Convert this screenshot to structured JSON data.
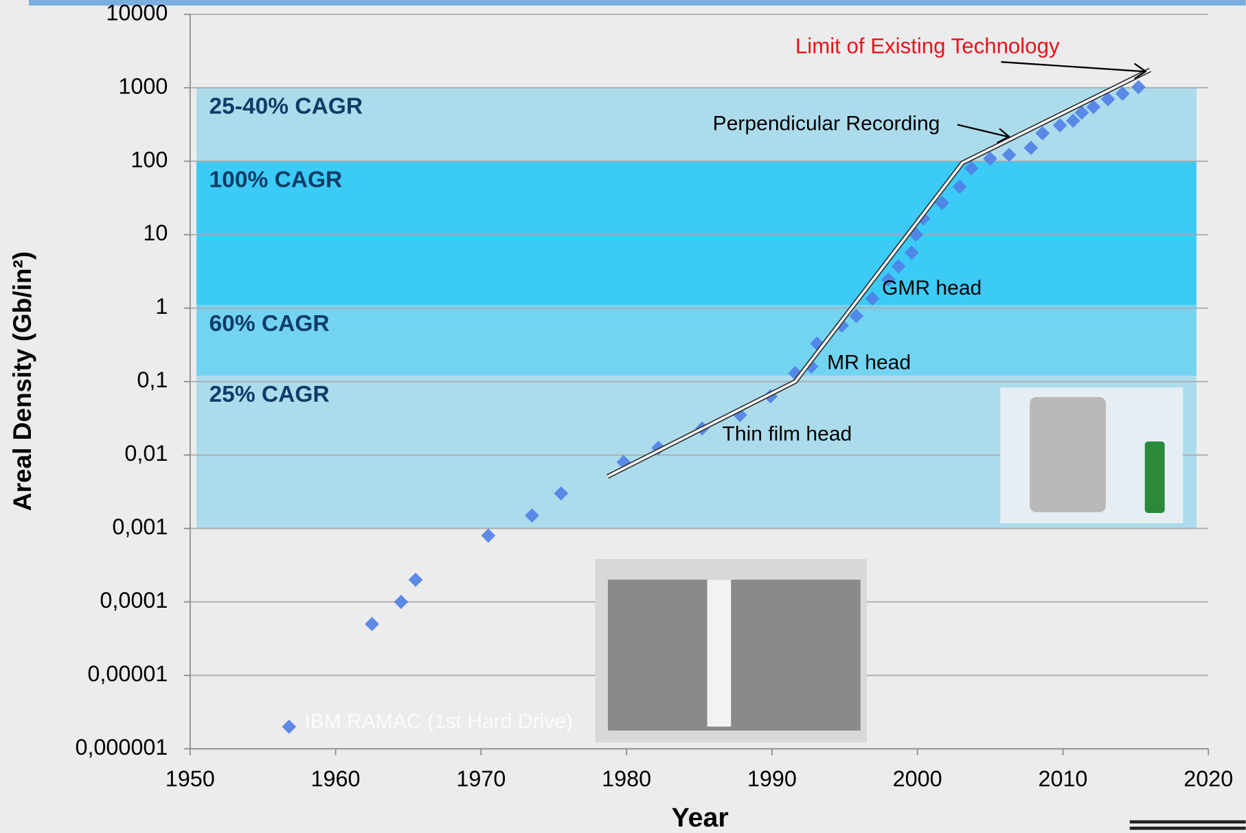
{
  "chart_data": {
    "type": "scatter",
    "x_label": "Year",
    "y_label": "Areal Density (Gb/in²)",
    "xlim": [
      1950,
      2020
    ],
    "xticks": [
      1950,
      1960,
      1970,
      1980,
      1990,
      2000,
      2010,
      2020
    ],
    "ylim": [
      1e-06,
      10000
    ],
    "log_y": true,
    "grid": true,
    "yticks": [
      {
        "value": 1e-06,
        "label": "0,000001"
      },
      {
        "value": 1e-05,
        "label": "0,00001"
      },
      {
        "value": 0.0001,
        "label": "0,0001"
      },
      {
        "value": 0.001,
        "label": "0,001"
      },
      {
        "value": 0.01,
        "label": "0,01"
      },
      {
        "value": 0.1,
        "label": "0,1"
      },
      1,
      10,
      100,
      1000,
      10000
    ],
    "series": [
      {
        "color": "#4f7fe6",
        "x": [
          1956.8,
          1962.5,
          1964.5,
          1965.5,
          1970.5,
          1973.5,
          1975.5,
          1979.8,
          1982.2,
          1985.2,
          1987.8,
          1989.9,
          1991.6,
          1992.7,
          1993.1,
          1994.8,
          1995.8,
          1996.9,
          1998.0,
          1998.7,
          1999.6,
          1999.9,
          2000.4,
          2001.7,
          2002.9,
          2003.7,
          2005.0,
          2006.3,
          2007.8,
          2008.6,
          2009.8,
          2010.7,
          2011.3,
          2012.1,
          2013.1,
          2014.1,
          2015.2
        ],
        "values": [
          2e-06,
          5e-05,
          0.0001,
          0.0002,
          0.0008,
          0.0015,
          0.003,
          0.008,
          0.0125,
          0.023,
          0.035,
          0.063,
          0.13,
          0.16,
          0.33,
          0.58,
          0.78,
          1.35,
          2.45,
          3.7,
          5.7,
          10,
          16.6,
          27,
          45,
          80,
          108,
          122,
          152,
          240,
          308,
          355,
          457,
          547,
          697,
          830,
          1020
        ]
      }
    ],
    "trend_line": {
      "color": "#ffffff",
      "x": [
        1978.7,
        1991.6,
        2003.1,
        2016
      ],
      "values": [
        0.0051,
        0.1,
        95,
        1750
      ]
    },
    "bands": [
      {
        "label": "25-40% CAGR",
        "ylim": [
          100,
          1000
        ],
        "color": "#acdcec"
      },
      {
        "label": "100% CAGR",
        "ylim": [
          1.1,
          100
        ],
        "color": "#3ccbf6"
      },
      {
        "label": "60% CAGR",
        "ylim": [
          0.12,
          1.1
        ],
        "color": "#73d4f2"
      },
      {
        "label": "25% CAGR",
        "ylim": [
          0.001,
          0.12
        ],
        "color": "#acdcec"
      }
    ],
    "annotations": [
      {
        "text": "Limit of Existing Technology",
        "color": "#e8121a"
      },
      {
        "text": "Perpendicular Recording",
        "color": "#000000"
      },
      {
        "text": "GMR head",
        "color": "#000000"
      },
      {
        "text": "MR head",
        "color": "#000000"
      },
      {
        "text": "Thin film head",
        "color": "#000000"
      },
      {
        "text": "IBM RAMAC (1st Hard Drive)",
        "color": "#ffffff"
      }
    ]
  }
}
